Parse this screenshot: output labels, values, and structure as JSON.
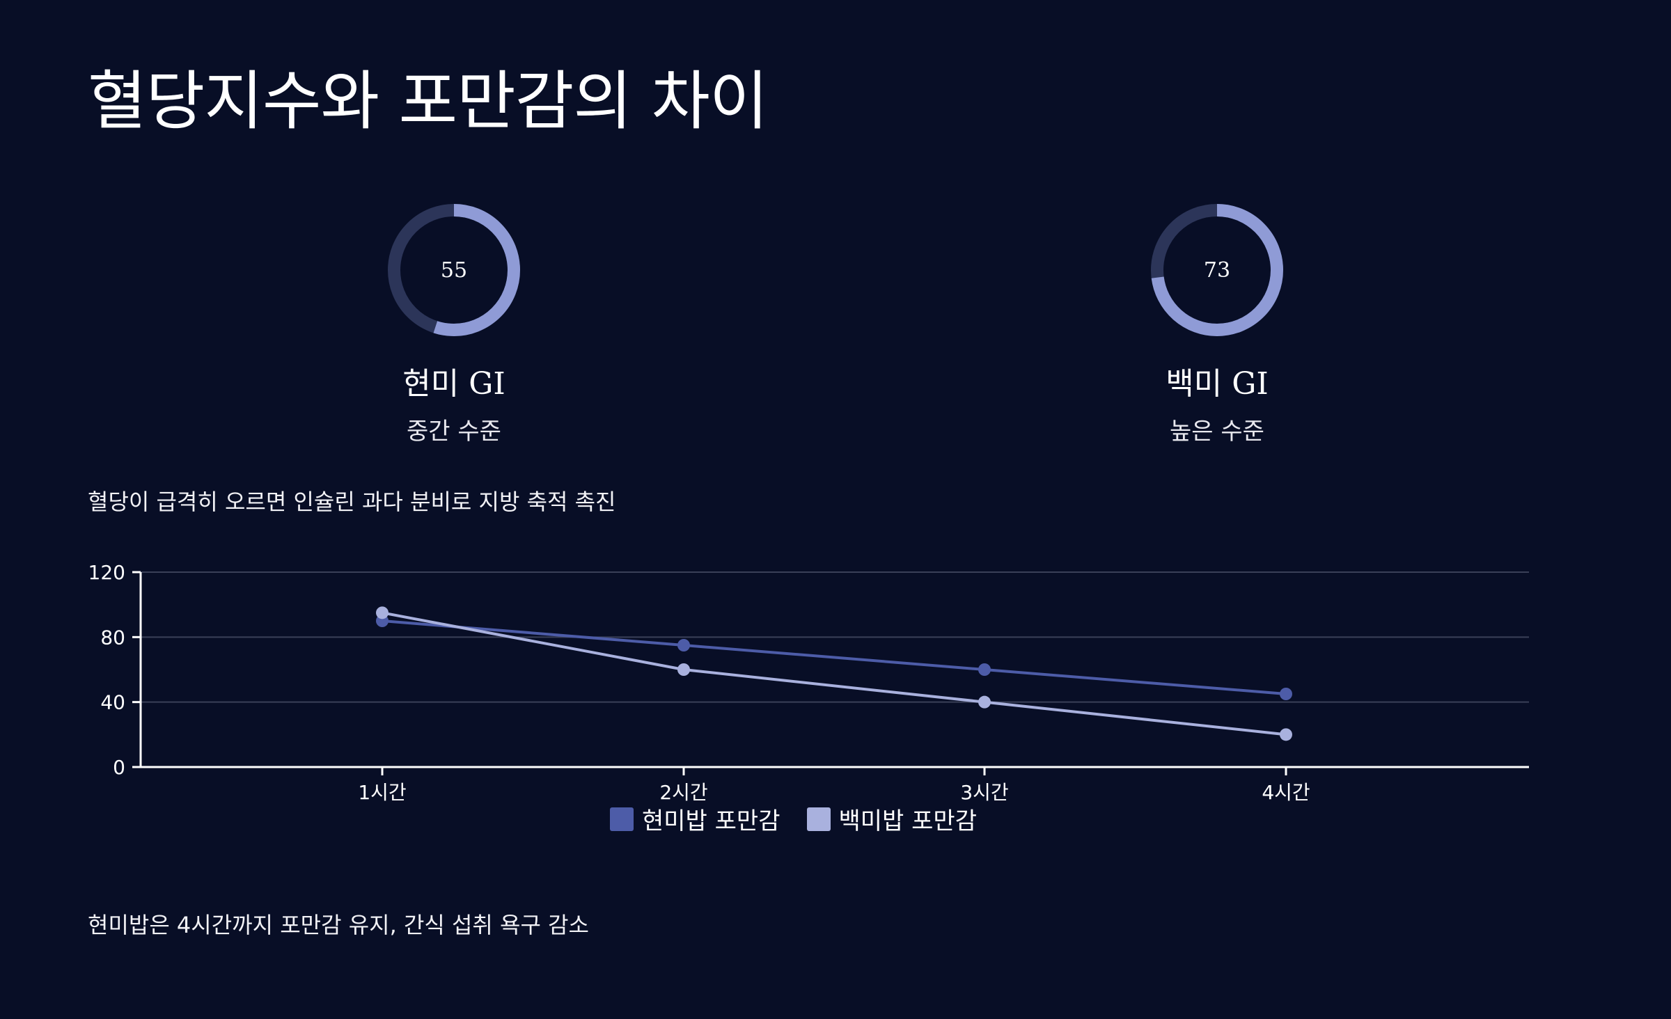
{
  "title": "혈당지수와 포만감의 차이",
  "gauges": [
    {
      "value": 55,
      "value_label": "55",
      "label": "현미 GI",
      "sub": "중간 수준",
      "max": 100,
      "color": "#8f9bd6",
      "track": "#2c3559"
    },
    {
      "value": 73,
      "value_label": "73",
      "label": "백미 GI",
      "sub": "높은 수준",
      "max": 100,
      "color": "#8f9bd6",
      "track": "#2c3559"
    }
  ],
  "note_top": "혈당이 급격히 오르면 인슐린 과다 분비로 지방 축적 촉진",
  "note_bottom": "현미밥은 4시간까지 포만감 유지, 간식 섭취 욕구 감소",
  "chart_data": {
    "type": "line",
    "categories": [
      "1시간",
      "2시간",
      "3시간",
      "4시간"
    ],
    "series": [
      {
        "name": "현미밥 포만감",
        "values": [
          90,
          75,
          60,
          45
        ],
        "color": "#4d5ca8"
      },
      {
        "name": "백미밥 포만감",
        "values": [
          95,
          60,
          40,
          20
        ],
        "color": "#a9b1de"
      }
    ],
    "ylim": [
      0,
      120
    ],
    "yticks": [
      0,
      40,
      80,
      120
    ],
    "grid": true,
    "legend_position": "bottom-center"
  }
}
